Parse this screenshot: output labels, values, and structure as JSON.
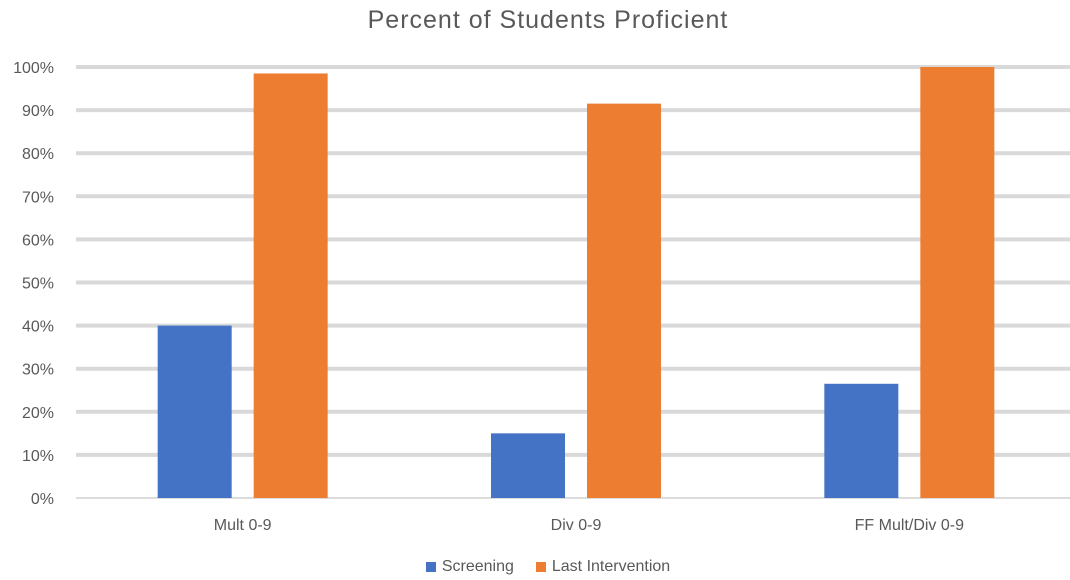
{
  "chart_data": {
    "type": "bar",
    "title": "Percent of Students Proficient",
    "xlabel": "",
    "ylabel": "",
    "ylim": [
      0,
      100
    ],
    "yticks": [
      "0%",
      "10%",
      "20%",
      "30%",
      "40%",
      "50%",
      "60%",
      "70%",
      "80%",
      "90%",
      "100%"
    ],
    "grid": true,
    "legend_position": "bottom",
    "categories": [
      "Mult 0-9",
      "Div 0-9",
      "FF Mult/Div 0-9"
    ],
    "series": [
      {
        "name": "Screening",
        "color": "#4472C4",
        "values": [
          40,
          15,
          26.5
        ]
      },
      {
        "name": "Last Intervention",
        "color": "#ED7D31",
        "values": [
          98.5,
          91.5,
          100
        ]
      }
    ]
  }
}
